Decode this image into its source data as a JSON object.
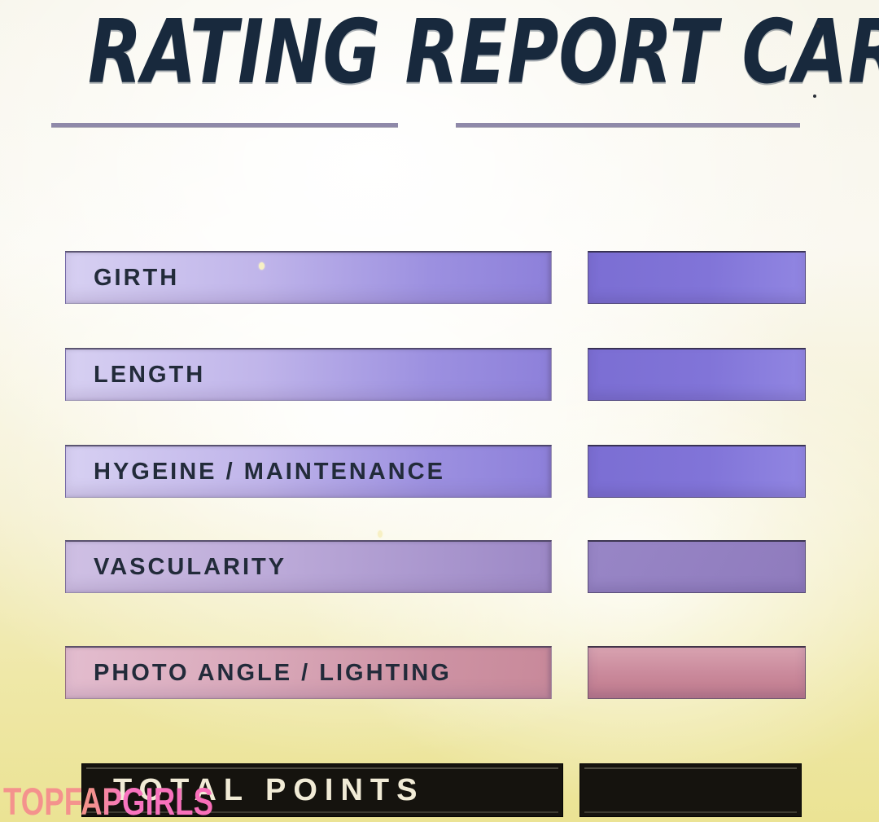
{
  "page": {
    "title": "RATING REPORT CARD",
    "watermark": "TOPFAPGIRLS"
  },
  "report": {
    "rows": [
      {
        "label": "GIRTH",
        "theme": "purple",
        "score": ""
      },
      {
        "label": "LENGTH",
        "theme": "purple",
        "score": ""
      },
      {
        "label": "HYGEINE / MAINTENANCE",
        "theme": "purple",
        "score": ""
      },
      {
        "label": "VASCULARITY",
        "theme": "violet",
        "score": ""
      },
      {
        "label": "PHOTO ANGLE / LIGHTING",
        "theme": "rose",
        "score": ""
      }
    ],
    "total": {
      "label": "TOTAL POINTS",
      "score": ""
    }
  },
  "colors": {
    "title_ink": "#18293d",
    "underline": "#8f89a9",
    "accent_purple": "#8d80da",
    "accent_violet": "#9c88c6",
    "accent_rose": "#c8899a",
    "total_bar_black": "#15130e",
    "total_label_cream": "#f1ebd6",
    "watermark_coral": "#f4928d",
    "watermark_pink": "#f86eb8",
    "background_yellow": "#ebe394"
  }
}
